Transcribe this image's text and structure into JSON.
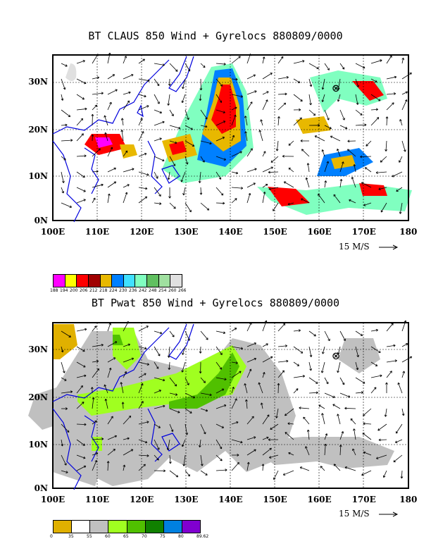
{
  "panel1": {
    "title": "BT CLAUS 850 Wind + Gyrelocs 880809/0000",
    "y_labels": [
      "30N",
      "20N",
      "10N",
      "0N"
    ],
    "x_labels": [
      "100E",
      "110E",
      "120E",
      "130E",
      "140E",
      "150E",
      "160E",
      "170E",
      "180"
    ],
    "scale_label": "15 M/S",
    "colorbar": {
      "colors": [
        "#ff00ff",
        "#ffff00",
        "#ff0000",
        "#a00000",
        "#e8b800",
        "#0080ff",
        "#40e0ff",
        "#80ffc0",
        "#60c060",
        "#a0e0a0",
        "#e0e0e0"
      ],
      "ticks": [
        "188",
        "194",
        "200",
        "206",
        "212",
        "218",
        "224",
        "230",
        "236",
        "242",
        "248",
        "254",
        "260",
        "266"
      ]
    }
  },
  "panel2": {
    "title": "BT Pwat 850 Wind + Gyrelocs 880809/0000",
    "y_labels": [
      "30N",
      "20N",
      "10N",
      "0N"
    ],
    "x_labels": [
      "100E",
      "110E",
      "120E",
      "130E",
      "140E",
      "150E",
      "160E",
      "170E",
      "180"
    ],
    "scale_label": "15 M/S",
    "colorbar": {
      "colors": [
        "#e0b000",
        "#ffffff",
        "#c0c0c0",
        "#a0ff20",
        "#50c000",
        "#108000",
        "#0080e0",
        "#8000d0"
      ],
      "ticks": [
        "0",
        "35",
        "55",
        "60",
        "65",
        "70",
        "75",
        "80",
        "89.62"
      ]
    }
  },
  "gyre_symbol": "⊗"
}
